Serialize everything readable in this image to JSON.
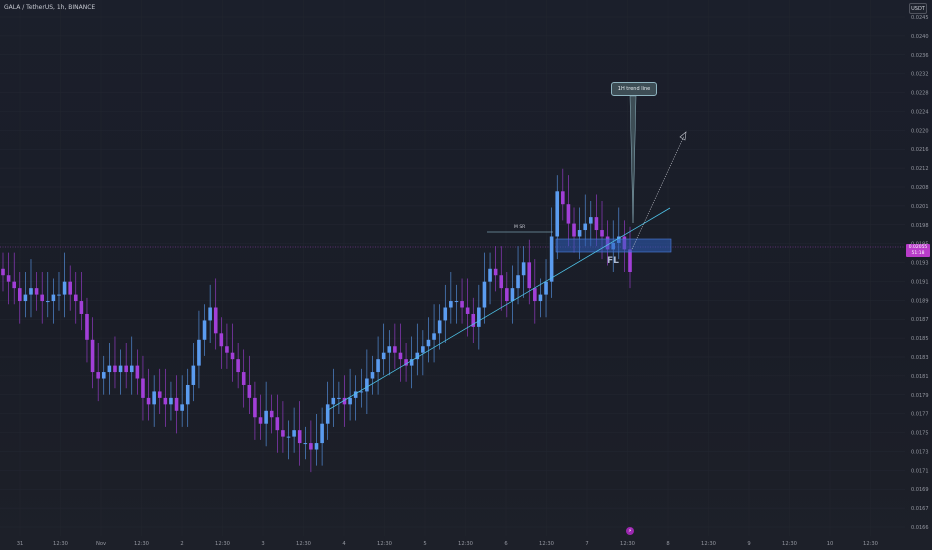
{
  "header": {
    "symbol_title": "GALA / TetherUS, 1h, BINANCE",
    "currency_button": "USDT"
  },
  "price_axis": {
    "labels": [
      "0.0245",
      "0.0240",
      "0.0236",
      "0.0232",
      "0.0228",
      "0.0224",
      "0.0220",
      "0.0216",
      "0.0212",
      "0.0208",
      "0.0201",
      "0.0198",
      "0.0195",
      "0.0193",
      "0.0191",
      "0.0189",
      "0.0187",
      "0.0185",
      "0.0183",
      "0.0181",
      "0.0179",
      "0.0177",
      "0.0175",
      "0.0173",
      "0.0171",
      "0.0169",
      "0.0167",
      "0.0166"
    ],
    "current_price": "0.02055",
    "countdown": "51:18"
  },
  "time_axis": {
    "labels": [
      "31",
      "12:30",
      "Nov",
      "12:30",
      "2",
      "12:30",
      "3",
      "12:30",
      "4",
      "12:30",
      "5",
      "12:30",
      "6",
      "12:30",
      "7",
      "12:30",
      "8",
      "12:30",
      "9",
      "12:30",
      "10",
      "12:30"
    ]
  },
  "annotations": {
    "trend_line_label": "1H trend line",
    "fl_label": "FL",
    "msr_label": "M SR"
  },
  "events": {
    "icon_glyph": "⚡"
  },
  "colors": {
    "bull": "#5b9cf0",
    "bear": "#a23fd8",
    "trendline": "#4fc3e8",
    "zone": "#3a6fd8",
    "current_price": "#b83cc9"
  },
  "chart_data": {
    "type": "candlestick",
    "title": "GALA / TetherUS, 1h, BINANCE",
    "ylim": [
      0.0166,
      0.0245
    ],
    "current_price": 0.02055,
    "close_series": [
      0.0205,
      0.0204,
      0.0203,
      0.0201,
      0.0202,
      0.0203,
      0.0202,
      0.0201,
      0.0201,
      0.0202,
      0.0202,
      0.0204,
      0.0202,
      0.0201,
      0.0199,
      0.0195,
      0.019,
      0.0189,
      0.019,
      0.0191,
      0.019,
      0.0191,
      0.019,
      0.0191,
      0.0189,
      0.0186,
      0.0185,
      0.0187,
      0.0186,
      0.0185,
      0.0186,
      0.0184,
      0.0185,
      0.0188,
      0.0191,
      0.0195,
      0.0198,
      0.02,
      0.0196,
      0.0194,
      0.0193,
      0.0192,
      0.019,
      0.0188,
      0.0186,
      0.0183,
      0.0182,
      0.0184,
      0.0183,
      0.0181,
      0.018,
      0.018,
      0.0181,
      0.0179,
      0.0179,
      0.0178,
      0.0179,
      0.0182,
      0.0185,
      0.0186,
      0.0186,
      0.0185,
      0.0186,
      0.0187,
      0.0187,
      0.0189,
      0.019,
      0.0192,
      0.0193,
      0.0194,
      0.0193,
      0.0192,
      0.0191,
      0.0192,
      0.0193,
      0.0194,
      0.0195,
      0.0196,
      0.0198,
      0.02,
      0.0201,
      0.0201,
      0.02,
      0.0199,
      0.0197,
      0.02,
      0.0204,
      0.0206,
      0.0205,
      0.0203,
      0.0201,
      0.0203,
      0.0205,
      0.0207,
      0.0203,
      0.0201,
      0.0202,
      0.0204,
      0.0211,
      0.0218,
      0.0216,
      0.0213,
      0.0211,
      0.0212,
      0.0213,
      0.0214,
      0.0212,
      0.0211,
      0.0209,
      0.021,
      0.0211,
      0.0209,
      0.02055
    ]
  }
}
